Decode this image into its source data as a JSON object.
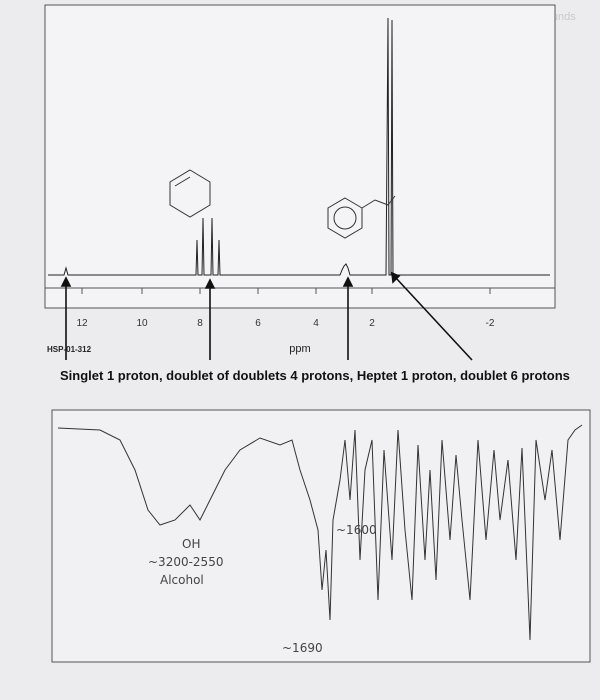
{
  "header": "Aromatic Compounds",
  "nmr": {
    "ticks": [
      "12",
      "10",
      "8",
      "6",
      "4",
      "2",
      "-2"
    ],
    "axis_label": "ppm",
    "code": "HSP-01-312"
  },
  "caption": "Singlet 1 proton, doublet of doublets 4 protons, Heptet 1 proton, doublet 6 protons",
  "ir": {
    "annotations": [
      "OH",
      "~3200-2550",
      "Alcohol",
      "~1600",
      "~1690"
    ]
  }
}
